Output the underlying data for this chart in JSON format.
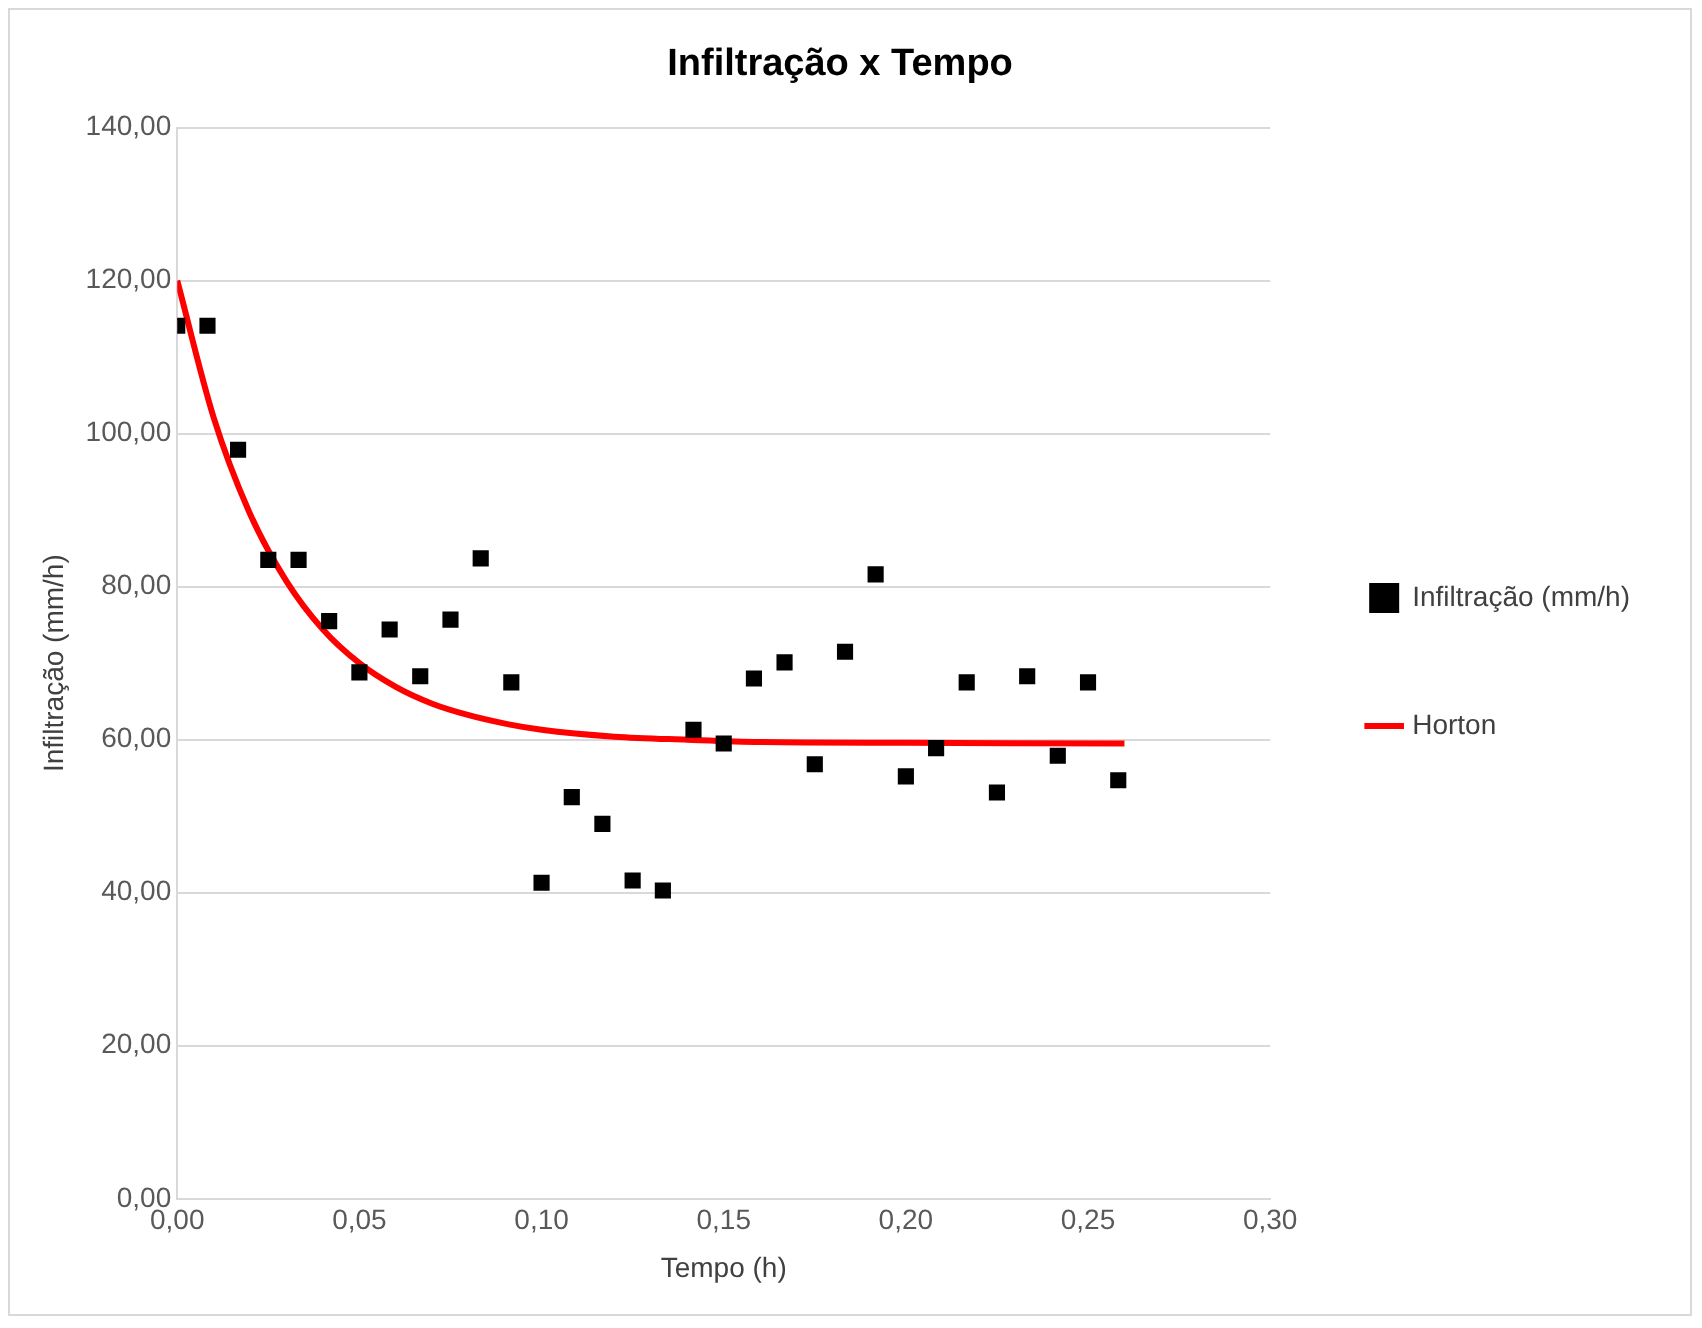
{
  "chart_data": {
    "type": "scatter",
    "title": "Infiltração x Tempo",
    "xlabel": "Tempo (h)",
    "ylabel": "Infiltração (mm/h)",
    "xlim": [
      0,
      0.3
    ],
    "xticks": [
      {
        "value": 0,
        "label": "0,00"
      },
      {
        "value": 0.05,
        "label": "0,05"
      },
      {
        "value": 0.1,
        "label": "0,10"
      },
      {
        "value": 0.15,
        "label": "0,15"
      },
      {
        "value": 0.2,
        "label": "0,20"
      },
      {
        "value": 0.25,
        "label": "0,25"
      },
      {
        "value": 0.3,
        "label": "0,30"
      }
    ],
    "ylim": [
      0,
      140
    ],
    "yticks": [
      {
        "value": 0,
        "label": "0,00"
      },
      {
        "value": 20,
        "label": "20,00"
      },
      {
        "value": 40,
        "label": "40,00"
      },
      {
        "value": 60,
        "label": "60,00"
      },
      {
        "value": 80,
        "label": "80,00"
      },
      {
        "value": 100,
        "label": "100,00"
      },
      {
        "value": 120,
        "label": "120,00"
      },
      {
        "value": 140,
        "label": "140,00"
      }
    ],
    "grid": "y",
    "legend": "right",
    "series": [
      {
        "name": "Infiltração (mm/h)",
        "marker": "square",
        "color": "#000000",
        "x": [
          0,
          0.0083,
          0.0167,
          0.025,
          0.0333,
          0.0417,
          0.05,
          0.0583,
          0.0667,
          0.075,
          0.0833,
          0.0917,
          0.1,
          0.1083,
          0.1167,
          0.125,
          0.1333,
          0.1417,
          0.15,
          0.1583,
          0.1667,
          0.175,
          0.1833,
          0.1917,
          0.2,
          0.2083,
          0.2167,
          0.225,
          0.2333,
          0.2417,
          0.25,
          0.2583
        ],
        "values": [
          114.1,
          114.1,
          97.9,
          83.5,
          83.5,
          75.5,
          68.8,
          74.4,
          68.3,
          75.7,
          83.7,
          67.5,
          41.3,
          52.5,
          49,
          41.6,
          40.3,
          61.3,
          59.5,
          68,
          70.1,
          56.8,
          71.5,
          81.6,
          55.2,
          58.9,
          67.5,
          53.1,
          68.3,
          57.9,
          67.5,
          54.7
        ]
      },
      {
        "name": "Horton",
        "type": "line",
        "marker": "none",
        "line_style": "solid",
        "color": "#ff0000",
        "x": [
          0,
          0.01,
          0.02,
          0.03,
          0.04,
          0.05,
          0.06,
          0.07,
          0.08,
          0.09,
          0.1,
          0.12,
          0.14,
          0.16,
          0.2,
          0.26
        ],
        "values": [
          120,
          102.1,
          89.5,
          80.7,
          74.4,
          70,
          66.9,
          64.7,
          63.2,
          62.1,
          61.3,
          60.4,
          60,
          59.7,
          59.6,
          59.5
        ]
      }
    ]
  }
}
